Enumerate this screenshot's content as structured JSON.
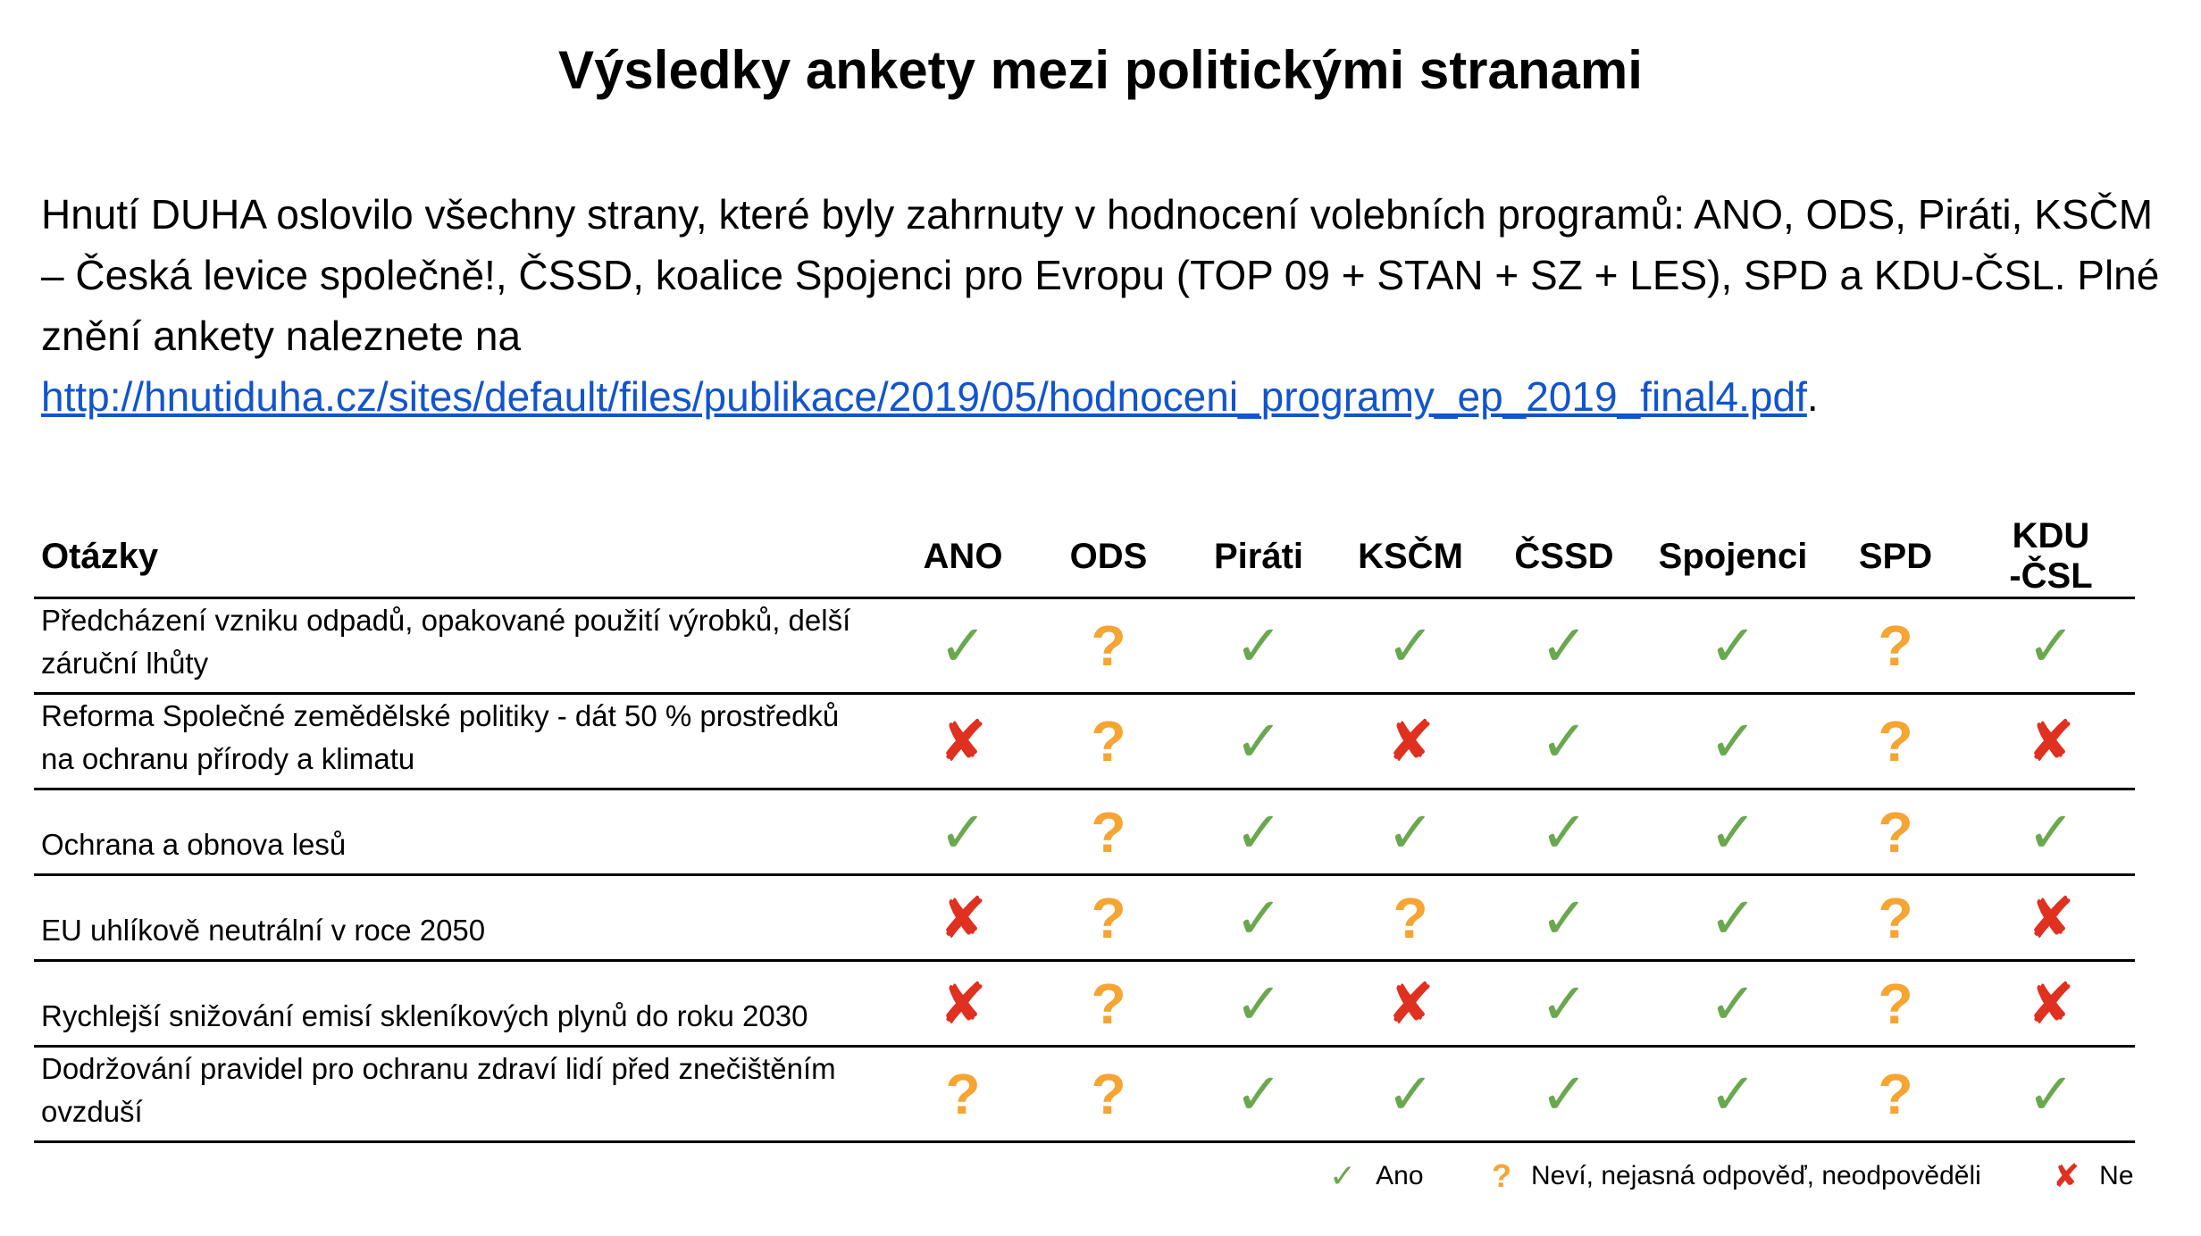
{
  "title": "Výsledky ankety mezi politickými stranami",
  "intro": {
    "text": "Hnutí DUHA oslovilo všechny strany, které byly zahrnuty v hodnocení volebních programů: ANO, ODS, Piráti, KSČM – Česká levice společně!, ČSSD, koalice Spojenci pro Evropu (TOP 09 + STAN + SZ + LES), SPD a KDU-ČSL. Plné znění ankety naleznete na",
    "link": "http://hnutiduha.cz/sites/default/files/publikace/2019/05/hodnoceni_programy_ep_2019_final4.pdf",
    "end": "."
  },
  "table": {
    "question_header": "Otázky",
    "parties": [
      "ANO",
      "ODS",
      "Piráti",
      "KSČM",
      "ČSSD",
      "Spojenci",
      "SPD",
      "KDU -ČSL"
    ],
    "rows": [
      {
        "question": "Předcházení vzniku odpadů, opakované použití výrobků, delší záruční lhůty",
        "answers": [
          "yes",
          "maybe",
          "yes",
          "yes",
          "yes",
          "yes",
          "maybe",
          "yes"
        ]
      },
      {
        "question": "Reforma Společné zemědělské politiky - dát 50 % prostředků na ochranu přírody a klimatu",
        "answers": [
          "no",
          "maybe",
          "yes",
          "no",
          "yes",
          "yes",
          "maybe",
          "no"
        ]
      },
      {
        "question": "Ochrana a obnova lesů",
        "answers": [
          "yes",
          "maybe",
          "yes",
          "yes",
          "yes",
          "yes",
          "maybe",
          "yes"
        ]
      },
      {
        "question": "EU uhlíkově neutrální v roce 2050",
        "answers": [
          "no",
          "maybe",
          "yes",
          "maybe",
          "yes",
          "yes",
          "maybe",
          "no"
        ]
      },
      {
        "question": "Rychlejší snižování emisí skleníkových plynů do roku 2030",
        "answers": [
          "no",
          "maybe",
          "yes",
          "no",
          "yes",
          "yes",
          "maybe",
          "no"
        ]
      },
      {
        "question": "Dodržování pravidel pro ochranu zdraví lidí před znečištěním ovzduší",
        "answers": [
          "maybe",
          "maybe",
          "yes",
          "yes",
          "yes",
          "yes",
          "maybe",
          "yes"
        ]
      }
    ]
  },
  "marks": {
    "yes": {
      "symbol": "✓",
      "color": "#6aa84f"
    },
    "maybe": {
      "symbol": "?",
      "color": "#f6a432"
    },
    "no": {
      "symbol": "✘",
      "color": "#e03020"
    }
  },
  "legend": {
    "yes_label": "Ano",
    "maybe_label": "Neví, nejasná odpověď, neodpověděli",
    "no_label": "Ne"
  }
}
